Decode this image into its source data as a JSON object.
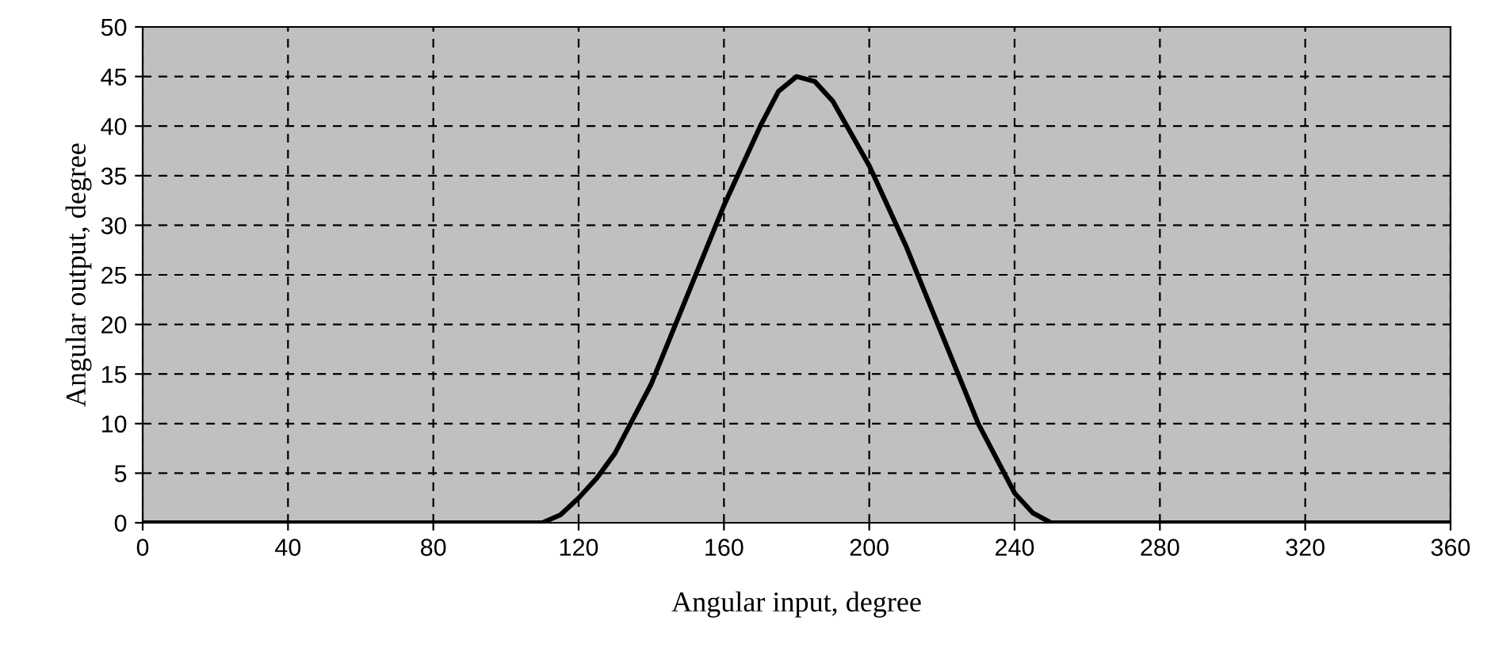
{
  "chart_data": {
    "type": "line",
    "xlabel": "Angular input, degree",
    "ylabel": "Angular output, degree",
    "series": [
      {
        "color": "#000000",
        "x": [
          0,
          40,
          80,
          110,
          115,
          120,
          125,
          130,
          140,
          150,
          160,
          170,
          175,
          180,
          185,
          190,
          200,
          210,
          220,
          230,
          240,
          245,
          250,
          280,
          320,
          360
        ],
        "values": [
          0,
          0,
          0,
          0,
          0.8,
          2.5,
          4.5,
          7,
          14,
          23,
          32,
          40,
          43.5,
          45,
          44.5,
          42.5,
          36,
          28,
          19,
          10,
          3,
          1,
          0,
          0,
          0,
          0
        ]
      }
    ],
    "xlim": [
      0,
      360
    ],
    "xticks": [
      0,
      40,
      80,
      120,
      160,
      200,
      240,
      280,
      320,
      360
    ],
    "ylim": [
      0,
      50
    ],
    "yticks": [
      0,
      5,
      10,
      15,
      20,
      25,
      30,
      35,
      40,
      45,
      50
    ],
    "grid": true,
    "line_style": "solid",
    "marker": "none",
    "legend": false
  }
}
